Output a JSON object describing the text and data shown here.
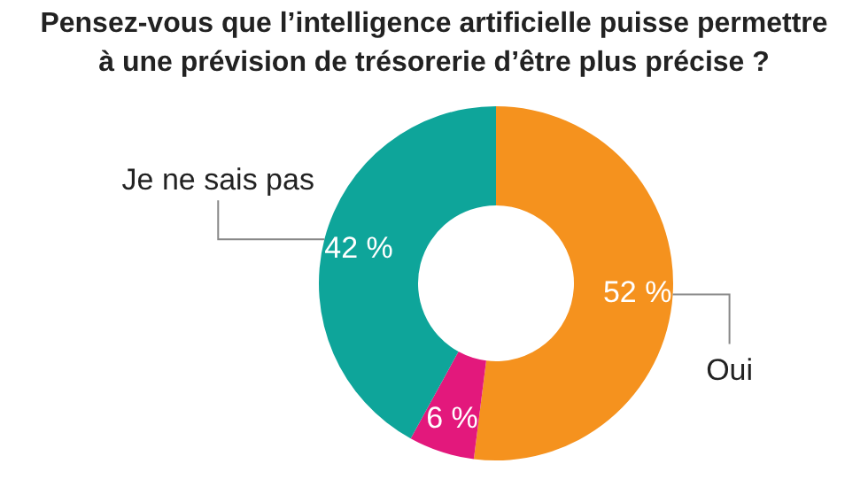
{
  "chart_data": {
    "type": "donut",
    "title": "Pensez-vous que l’intelligence artificielle puisse permettre\nà une prévision de trésorerie d’être plus précise ?",
    "categories": [
      "Oui",
      null,
      "Je ne sais pas"
    ],
    "values": [
      52,
      6,
      42
    ],
    "colors": [
      "#f5921e",
      "#e3187c",
      "#0ea59a"
    ],
    "value_labels": [
      "52 %",
      "6 %",
      "42 %"
    ]
  }
}
